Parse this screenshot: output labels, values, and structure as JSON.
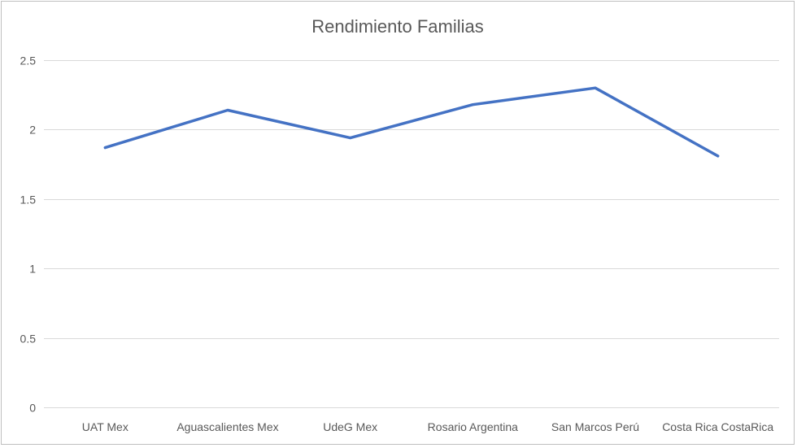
{
  "chart_data": {
    "type": "line",
    "title": "Rendimiento Familias",
    "xlabel": "",
    "ylabel": "",
    "categories": [
      "UAT Mex",
      "Aguascalientes Mex",
      "UdeG Mex",
      "Rosario Argentina",
      "San Marcos Perú",
      "Costa Rica CostaRica"
    ],
    "series": [
      {
        "values": [
          1.87,
          2.14,
          1.94,
          2.18,
          2.3,
          1.81
        ],
        "color": "#4472c4"
      }
    ],
    "ylim": [
      0,
      2.5
    ],
    "yticks": [
      "0",
      "0.5",
      "1",
      "1.5",
      "2",
      "2.5"
    ],
    "grid": true,
    "legend": "none"
  }
}
